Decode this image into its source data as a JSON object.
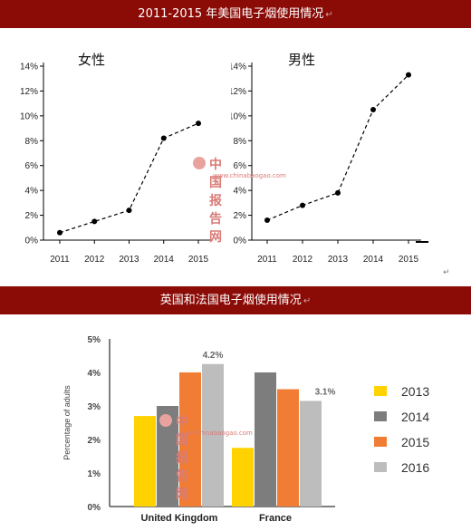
{
  "top_banner": {
    "title": "2011-2015 年美国电子烟使用情况",
    "mark": "↵"
  },
  "mid_banner": {
    "title": "英国和法国电子烟使用情况",
    "mark": "↵"
  },
  "watermark": {
    "text": "中国报告网",
    "url": "www.chinabaogao.com",
    "logo_text": "CBG"
  },
  "paragraph_mark": "↵",
  "colors": {
    "banner": "#8b0b06",
    "y2013": "#ffd200",
    "y2014": "#7d7d7d",
    "y2015": "#f07d33",
    "y2016": "#bdbdbd"
  },
  "chart_data": [
    {
      "type": "line",
      "title": "女性",
      "x": [
        "2011",
        "2012",
        "2013",
        "2014",
        "2015"
      ],
      "values": [
        0.6,
        1.5,
        2.4,
        8.2,
        9.4
      ],
      "ylim": [
        0,
        14
      ],
      "yticks": [
        "0%",
        "2%",
        "4%",
        "6%",
        "8%",
        "10%",
        "12%",
        "14%"
      ],
      "line_style": "dashed",
      "grid": false
    },
    {
      "type": "line",
      "title": "男性",
      "x": [
        "2011",
        "2012",
        "2013",
        "2014",
        "2015"
      ],
      "values": [
        1.6,
        2.8,
        3.8,
        10.5,
        13.3
      ],
      "ylim": [
        0,
        14
      ],
      "yticks": [
        "0%",
        "2%",
        "4%",
        "6%",
        "8%",
        "10%",
        "12%",
        "14%"
      ],
      "line_style": "dashed",
      "grid": false
    },
    {
      "type": "bar",
      "categories": [
        "United Kingdom",
        "France"
      ],
      "series": [
        {
          "name": "2013",
          "values": [
            2.7,
            1.75
          ]
        },
        {
          "name": "2014",
          "values": [
            3.0,
            4.0
          ]
        },
        {
          "name": "2015",
          "values": [
            4.0,
            3.5
          ]
        },
        {
          "name": "2016",
          "values": [
            4.25,
            3.15
          ]
        }
      ],
      "ylabel": "Percentage of adults",
      "ylim": [
        0,
        5
      ],
      "yticks": [
        "0%",
        "1%",
        "2%",
        "3%",
        "4%",
        "5%"
      ],
      "annotations": [
        "4.2%",
        "3.1%"
      ],
      "legend": "right",
      "grid": false
    }
  ]
}
